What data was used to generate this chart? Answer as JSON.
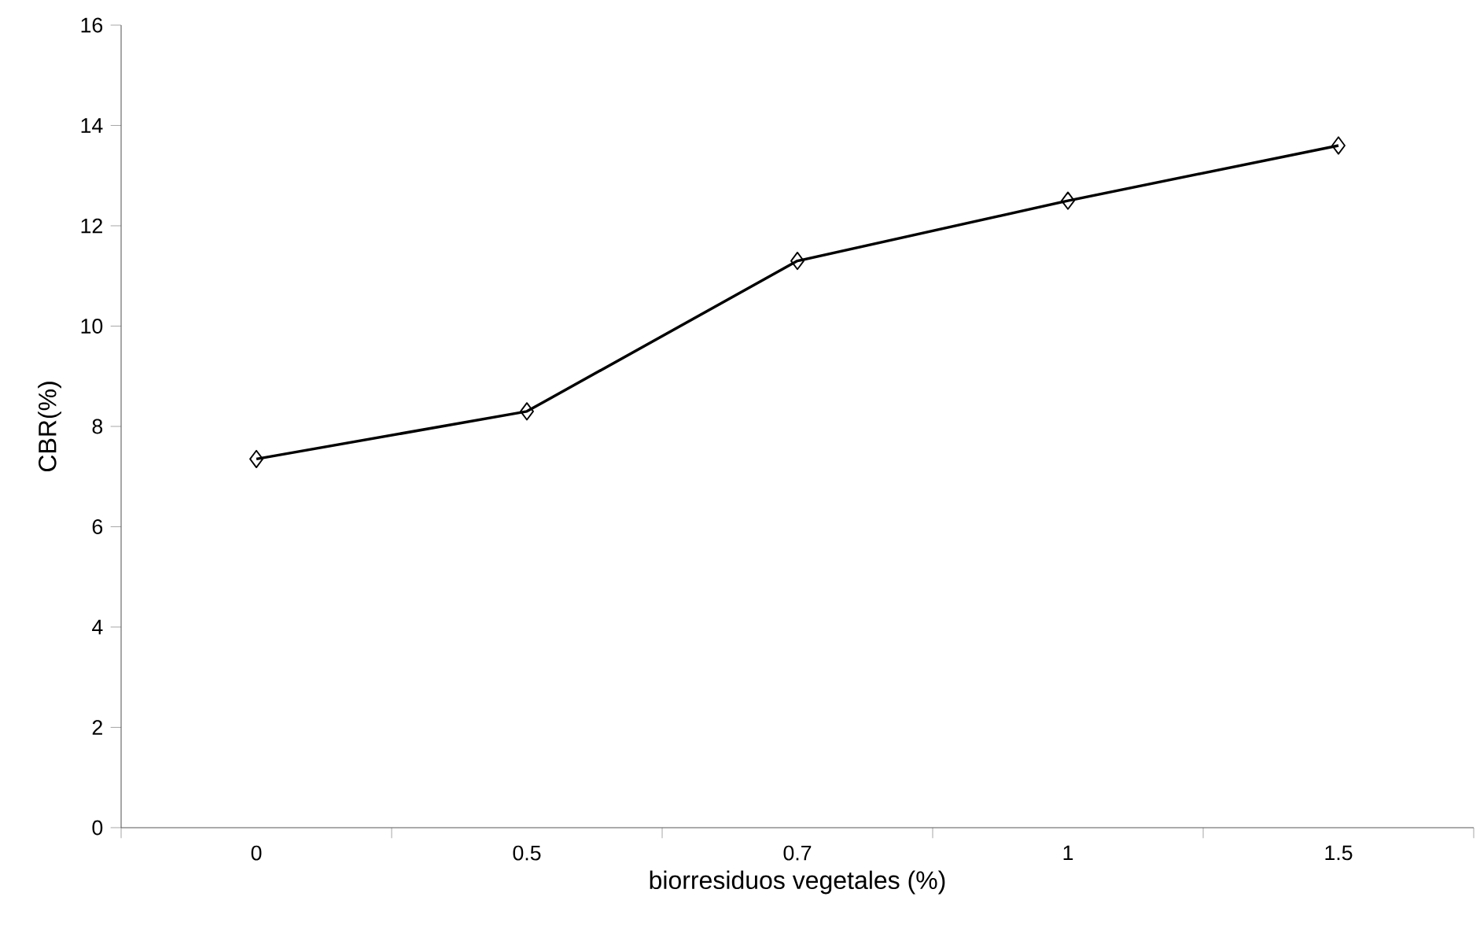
{
  "chart_data": {
    "type": "line",
    "xlabel": "biorresiduos vegetales (%)",
    "ylabel": "CBR(%)",
    "categories": [
      "0",
      "0.5",
      "0.7",
      "1",
      "1.5"
    ],
    "values": [
      7.35,
      8.3,
      11.3,
      12.5,
      13.6
    ],
    "color": "#000000",
    "marker": "diamond",
    "line_style": "solid",
    "ylim": [
      0,
      16
    ],
    "yticks": [
      0,
      2,
      4,
      6,
      8,
      10,
      12,
      14,
      16
    ],
    "grid": false
  }
}
